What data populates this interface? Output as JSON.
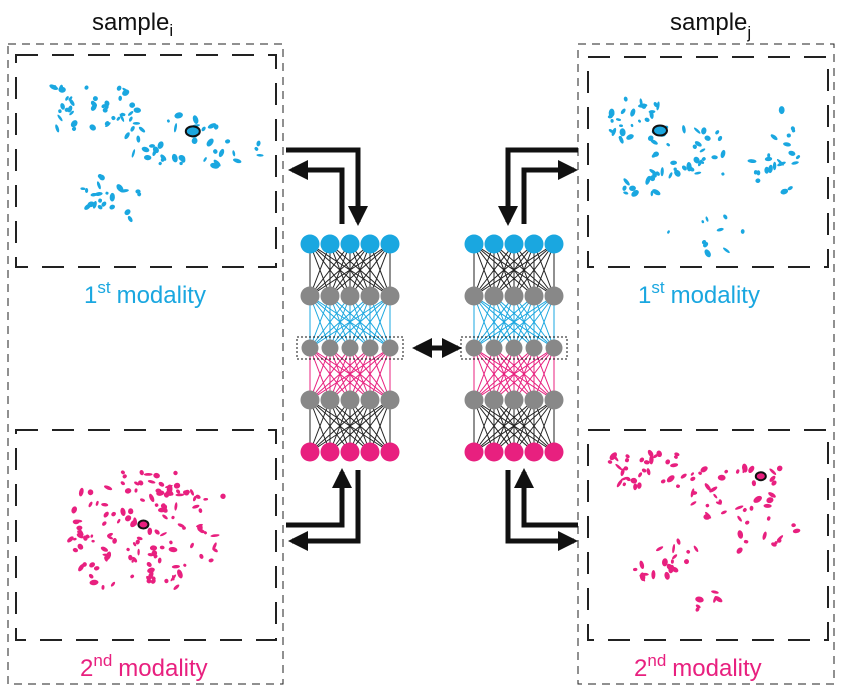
{
  "samples": {
    "left": {
      "text": "sample",
      "subscript": "i"
    },
    "right": {
      "text": "sample",
      "subscript": "j"
    }
  },
  "modalities": {
    "first": {
      "number": "1",
      "ordinal": "st",
      "word": "modality"
    },
    "second": {
      "number": "2",
      "ordinal": "nd",
      "word": "modality"
    }
  },
  "colors": {
    "modality_1": "#1aa7e0",
    "modality_2": "#e8207f",
    "hidden_node": "#888888",
    "edge_outer": "#222222",
    "arrow": "#111111"
  },
  "network": {
    "layers": 5,
    "nodes_per_layer": 5,
    "layer_roles": [
      "modality_1_input",
      "hidden",
      "shared_latent",
      "hidden",
      "modality_2_input"
    ]
  }
}
